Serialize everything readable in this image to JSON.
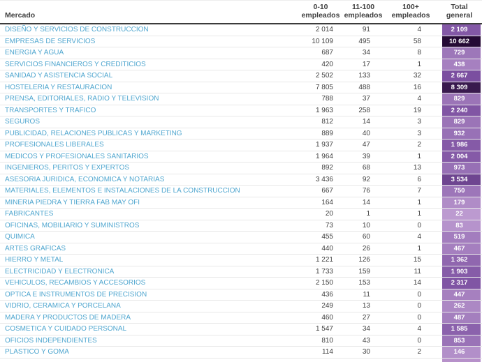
{
  "chart_data": {
    "type": "table",
    "header": {
      "market": "Mercado",
      "employee_columns": [
        {
          "line1": "0-10",
          "line2": "empleados"
        },
        {
          "line1": "11-100",
          "line2": "empleados"
        },
        {
          "line1": "100+",
          "line2": "empleados"
        }
      ],
      "total": {
        "line1": "Total",
        "line2": "general"
      }
    },
    "rows": [
      {
        "market": "DISEÑO Y SERVICIOS DE CONSTRUCCION",
        "emp_0_10": 2014,
        "emp_11_100": 91,
        "emp_100_plus": 4,
        "total": 2109
      },
      {
        "market": "EMPRESAS DE SERVICIOS",
        "emp_0_10": 10109,
        "emp_11_100": 495,
        "emp_100_plus": 58,
        "total": 10662
      },
      {
        "market": "ENERGIA Y AGUA",
        "emp_0_10": 687,
        "emp_11_100": 34,
        "emp_100_plus": 8,
        "total": 729
      },
      {
        "market": "SERVICIOS FINANCIEROS Y CREDITICIOS",
        "emp_0_10": 420,
        "emp_11_100": 17,
        "emp_100_plus": 1,
        "total": 438
      },
      {
        "market": "SANIDAD Y ASISTENCIA SOCIAL",
        "emp_0_10": 2502,
        "emp_11_100": 133,
        "emp_100_plus": 32,
        "total": 2667
      },
      {
        "market": "HOSTELERIA Y RESTAURACION",
        "emp_0_10": 7805,
        "emp_11_100": 488,
        "emp_100_plus": 16,
        "total": 8309
      },
      {
        "market": "PRENSA, EDITORIALES, RADIO Y TELEVISION",
        "emp_0_10": 788,
        "emp_11_100": 37,
        "emp_100_plus": 4,
        "total": 829
      },
      {
        "market": "TRANSPORTES Y TRAFICO",
        "emp_0_10": 1963,
        "emp_11_100": 258,
        "emp_100_plus": 19,
        "total": 2240
      },
      {
        "market": "SEGUROS",
        "emp_0_10": 812,
        "emp_11_100": 14,
        "emp_100_plus": 3,
        "total": 829
      },
      {
        "market": "PUBLICIDAD, RELACIONES PUBLICAS Y MARKETING",
        "emp_0_10": 889,
        "emp_11_100": 40,
        "emp_100_plus": 3,
        "total": 932
      },
      {
        "market": "PROFESIONALES LIBERALES",
        "emp_0_10": 1937,
        "emp_11_100": 47,
        "emp_100_plus": 2,
        "total": 1986
      },
      {
        "market": "MEDICOS Y PROFESIONALES SANITARIOS",
        "emp_0_10": 1964,
        "emp_11_100": 39,
        "emp_100_plus": 1,
        "total": 2004
      },
      {
        "market": "INGENIEROS, PERITOS Y EXPERTOS",
        "emp_0_10": 892,
        "emp_11_100": 68,
        "emp_100_plus": 13,
        "total": 973
      },
      {
        "market": "ASESORIA JURIDICA, ECONOMICA Y NOTARIAS",
        "emp_0_10": 3436,
        "emp_11_100": 92,
        "emp_100_plus": 6,
        "total": 3534
      },
      {
        "market": "MATERIALES, ELEMENTOS E INSTALACIONES DE LA CONSTRUCCION",
        "emp_0_10": 667,
        "emp_11_100": 76,
        "emp_100_plus": 7,
        "total": 750
      },
      {
        "market": "MINERIA PIEDRA Y TIERRA FAB MAY OFI",
        "emp_0_10": 164,
        "emp_11_100": 14,
        "emp_100_plus": 1,
        "total": 179
      },
      {
        "market": "FABRICANTES",
        "emp_0_10": 20,
        "emp_11_100": 1,
        "emp_100_plus": 1,
        "total": 22
      },
      {
        "market": "OFICINAS, MOBILIARIO Y SUMINISTROS",
        "emp_0_10": 73,
        "emp_11_100": 10,
        "emp_100_plus": 0,
        "total": 83
      },
      {
        "market": "QUIMICA",
        "emp_0_10": 455,
        "emp_11_100": 60,
        "emp_100_plus": 4,
        "total": 519
      },
      {
        "market": "ARTES GRAFICAS",
        "emp_0_10": 440,
        "emp_11_100": 26,
        "emp_100_plus": 1,
        "total": 467
      },
      {
        "market": "HIERRO Y METAL",
        "emp_0_10": 1221,
        "emp_11_100": 126,
        "emp_100_plus": 15,
        "total": 1362
      },
      {
        "market": "ELECTRICIDAD Y ELECTRONICA",
        "emp_0_10": 1733,
        "emp_11_100": 159,
        "emp_100_plus": 11,
        "total": 1903
      },
      {
        "market": "VEHICULOS, RECAMBIOS Y ACCESORIOS",
        "emp_0_10": 2150,
        "emp_11_100": 153,
        "emp_100_plus": 14,
        "total": 2317
      },
      {
        "market": "OPTICA E INSTRUMENTOS DE PRECISION",
        "emp_0_10": 436,
        "emp_11_100": 11,
        "emp_100_plus": 0,
        "total": 447
      },
      {
        "market": "VIDRIO, CERAMICA Y PORCELANA",
        "emp_0_10": 249,
        "emp_11_100": 13,
        "emp_100_plus": 0,
        "total": 262
      },
      {
        "market": "MADERA Y PRODUCTOS DE MADERA",
        "emp_0_10": 460,
        "emp_11_100": 27,
        "emp_100_plus": 0,
        "total": 487
      },
      {
        "market": "COSMETICA Y CUIDADO PERSONAL",
        "emp_0_10": 1547,
        "emp_11_100": 34,
        "emp_100_plus": 4,
        "total": 1585
      },
      {
        "market": "OFICIOS INDEPENDIENTES",
        "emp_0_10": 810,
        "emp_11_100": 43,
        "emp_100_plus": 0,
        "total": 853
      },
      {
        "market": "PLASTICO Y GOMA",
        "emp_0_10": 114,
        "emp_11_100": 30,
        "emp_100_plus": 2,
        "total": 146
      }
    ]
  },
  "colors": {
    "market_link": "#4fa6cf",
    "header_text": "#3f3f3f",
    "number_text": "#3f3f3f",
    "header_border": "#3c3c3c",
    "row_border": "#e8e8e8",
    "total_text": "#ffffff",
    "total_scale_low": "#c3a2d5",
    "total_scale_mid": "#7b4fa0",
    "total_scale_high": "#250a35",
    "partial_row_total_bg": "#b791ca"
  }
}
